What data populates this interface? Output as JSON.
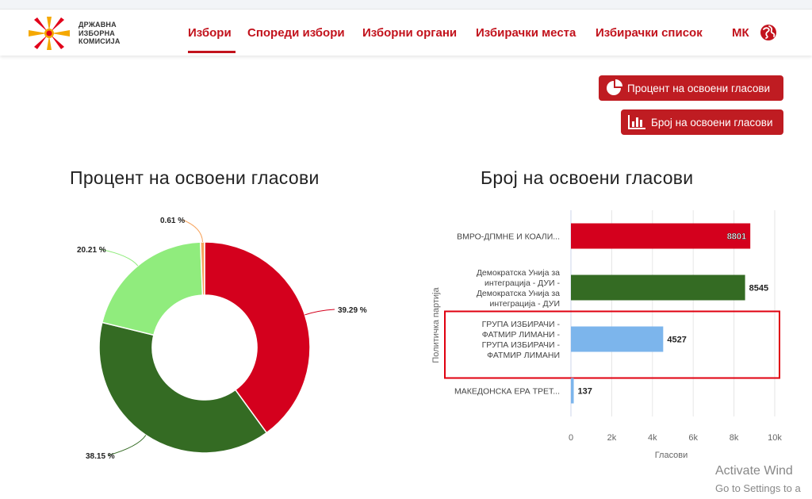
{
  "header": {
    "logo_lines": [
      "ДРЖАВНА",
      "ИЗБОРНА",
      "КОМИСИЈА"
    ],
    "nav": [
      "Избори",
      "Спореди избори",
      "Изборни органи",
      "Избирачки места",
      "Избирачки список"
    ],
    "language": "МК"
  },
  "buttons": {
    "percent": "Процент на освоени гласови",
    "count": "Број на освоени гласови"
  },
  "colors": {
    "red": "#d4001d",
    "dark_green": "#346b23",
    "light_green": "#90ec7d",
    "light_blue": "#7cb5ec",
    "orange": "#f7a35c",
    "brand": "#c2121c"
  },
  "chart_data": [
    {
      "type": "pie",
      "title": "Процент на освоени гласови",
      "labels": [
        "39.29 %",
        "38.15 %",
        "20.21 %",
        "0.61 %"
      ],
      "values": [
        39.29,
        38.15,
        20.21,
        0.61
      ],
      "colors": [
        "#d4001d",
        "#346b23",
        "#90ec7d",
        "#f7a35c"
      ]
    },
    {
      "type": "bar",
      "title": "Број на освоени гласови",
      "ylabel": "Политичка партија",
      "xlabel": "Гласови",
      "xlim": [
        0,
        10000
      ],
      "xticks": [
        "0",
        "2k",
        "4k",
        "6k",
        "8k",
        "10k"
      ],
      "categories": [
        [
          "ВМРО-ДПМНЕ И КОАЛИ..."
        ],
        [
          "Демократска Унија за",
          "интеграција - ДУИ -",
          "Демократска Унија за",
          "интеграција - ДУИ"
        ],
        [
          "ГРУПА ИЗБИРАЧИ -",
          "ФАТМИР ЛИМАНИ -",
          "ГРУПА ИЗБИРАЧИ -",
          "ФАТМИР ЛИМАНИ"
        ],
        [
          "МАКЕДОНСКА ЕРА ТРЕТ..."
        ]
      ],
      "values": [
        8801,
        8545,
        4527,
        137
      ],
      "value_labels": [
        "8801",
        "8545",
        "4527",
        "137"
      ],
      "colors": [
        "#d4001d",
        "#346b23",
        "#7cb5ec",
        "#7cb5ec"
      ],
      "highlighted_index": 2
    }
  ],
  "watermark": {
    "line1": "Activate Wind",
    "line2": "Go to Settings to a"
  }
}
